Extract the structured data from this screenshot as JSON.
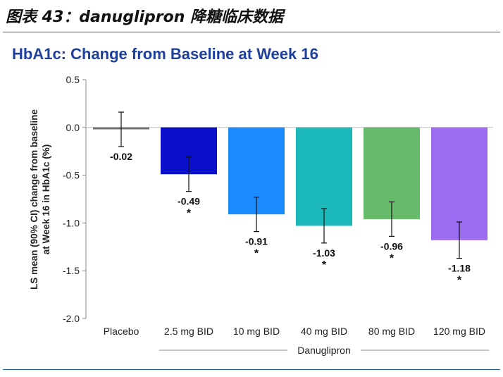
{
  "figure": {
    "caption": "图表 43：danuglipron 降糖临床数据",
    "rule_color": "#1f5fa8"
  },
  "chart_data": {
    "type": "bar",
    "title": "HbA1c: Change from Baseline at Week 16",
    "title_color": "#1f3f9f",
    "ylabel_lines": [
      "LS mean (90% CI) change from baseline",
      "at Week 16 in HbA1c (%)"
    ],
    "xlabel": "Danuglipron",
    "ylim": [
      -2.0,
      0.5
    ],
    "yticks": [
      0.5,
      0.0,
      -0.5,
      -1.0,
      -1.5,
      -2.0
    ],
    "ytick_labels": [
      "0.5",
      "0.0",
      "-0.5",
      "-1.0",
      "-1.5",
      "-2.0"
    ],
    "grid": false,
    "categories": [
      "Placebo",
      "2.5 mg BID",
      "10 mg BID",
      "40 mg BID",
      "80 mg BID",
      "120 mg BID"
    ],
    "values": [
      -0.02,
      -0.49,
      -0.91,
      -1.03,
      -0.96,
      -1.18
    ],
    "value_labels": [
      "-0.02",
      "-0.49",
      "-0.91",
      "-1.03",
      "-0.96",
      "-1.18"
    ],
    "ci_low": [
      -0.2,
      -0.67,
      -1.09,
      -1.21,
      -1.14,
      -1.37
    ],
    "ci_high": [
      0.16,
      -0.31,
      -0.73,
      -0.85,
      -0.78,
      -0.99
    ],
    "significance": [
      "",
      "*",
      "*",
      "*",
      "*",
      "*"
    ],
    "colors": [
      "#6e6e6e",
      "#0a10c9",
      "#1a8cff",
      "#1ab8b8",
      "#66bb6a",
      "#9c6cf0"
    ],
    "group": {
      "label": "Danuglipron",
      "from": 1,
      "to": 5
    }
  }
}
